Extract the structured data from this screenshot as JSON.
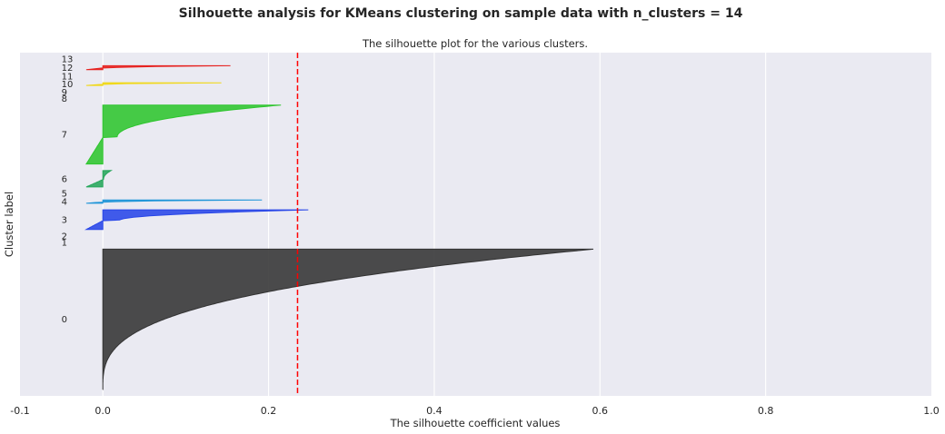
{
  "figure": {
    "suptitle": "Silhouette analysis for KMeans clustering on sample data with n_clusters = 14"
  },
  "chart_data": {
    "type": "area",
    "title": "The silhouette plot for the various clusters.",
    "xlabel": "The silhouette coefficient values",
    "ylabel": "Cluster label",
    "xlim": [
      -0.1,
      1.0
    ],
    "xticks": [
      "-0.1",
      "0.0",
      "0.2",
      "0.4",
      "0.6",
      "0.8",
      "1.0"
    ],
    "xtick_values": [
      -0.1,
      0.0,
      0.2,
      0.4,
      0.6,
      0.8,
      1.0
    ],
    "grid": true,
    "background": "#eaeaf2",
    "average_silhouette": 0.235,
    "average_line_color": "#ff0000",
    "cluster_labels": [
      "0",
      "1",
      "2",
      "3",
      "4",
      "5",
      "6",
      "7",
      "8",
      "9",
      "10",
      "11",
      "12",
      "13"
    ],
    "clusters": [
      {
        "label": "0",
        "color": "#333333",
        "size": 214,
        "min": -0.0,
        "max": 0.592
      },
      {
        "label": "1",
        "color": "#5a1a5e",
        "size": 0,
        "min": 0.0,
        "max": 0.0
      },
      {
        "label": "2",
        "color": "#1a3fcf",
        "size": 0,
        "min": 0.0,
        "max": 0.0
      },
      {
        "label": "3",
        "color": "#2846e8",
        "size": 30,
        "min": -0.1,
        "max": 0.248
      },
      {
        "label": "4",
        "color": "#1f95d8",
        "size": 5,
        "min": -0.1,
        "max": 0.192
      },
      {
        "label": "5",
        "color": "#22a0b0",
        "size": 0,
        "min": 0.0,
        "max": 0.0
      },
      {
        "label": "6",
        "color": "#26a65b",
        "size": 25,
        "min": -0.1,
        "max": 0.01
      },
      {
        "label": "7",
        "color": "#2ec52e",
        "size": 90,
        "min": -0.1,
        "max": 0.215
      },
      {
        "label": "8",
        "color": "#7acb1c",
        "size": 0,
        "min": 0.0,
        "max": 0.0
      },
      {
        "label": "9",
        "color": "#c6d21a",
        "size": 0,
        "min": 0.0,
        "max": 0.0
      },
      {
        "label": "10",
        "color": "#f0d816",
        "size": 4,
        "min": -0.1,
        "max": 0.143
      },
      {
        "label": "11",
        "color": "#f59e14",
        "size": 0,
        "min": 0.0,
        "max": 0.0
      },
      {
        "label": "12",
        "color": "#e6201e",
        "size": 6,
        "min": -0.1,
        "max": 0.154
      },
      {
        "label": "13",
        "color": "#dcdcdc",
        "size": 0,
        "min": 0.0,
        "max": 0.0
      }
    ]
  }
}
